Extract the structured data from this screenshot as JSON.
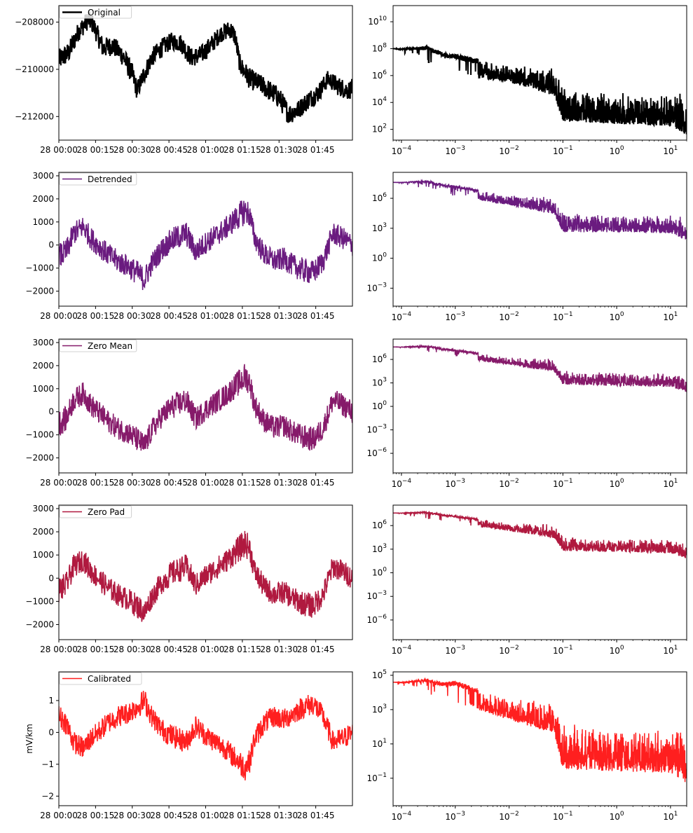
{
  "chart_data": [
    {
      "type": "line",
      "panel": "time",
      "color": "#000000",
      "legend": "Original",
      "ylabel": "",
      "ylim": [
        -213000,
        -207300
      ],
      "yticks": [
        -212000,
        -210000,
        -208000
      ],
      "ytick_labels": [
        "−212000",
        "−210000",
        "−208000"
      ],
      "xlim_minutes": [
        0,
        120
      ],
      "xtick_labels": [
        "28 00:00",
        "28 00:15",
        "28 00:30",
        "28 00:45",
        "28 01:00",
        "28 01:15",
        "28 01:30",
        "28 01:45"
      ],
      "envelope": {
        "t": [
          0,
          4,
          8,
          12,
          14,
          18,
          22,
          26,
          30,
          32,
          34,
          38,
          42,
          46,
          50,
          54,
          58,
          62,
          66,
          70,
          72,
          74,
          78,
          82,
          86,
          90,
          94,
          98,
          102,
          106,
          110,
          114,
          118,
          120
        ],
        "center": [
          -209600,
          -209300,
          -208400,
          -207900,
          -208100,
          -209100,
          -209000,
          -209400,
          -210200,
          -210900,
          -210400,
          -209500,
          -209100,
          -208800,
          -208900,
          -209500,
          -209400,
          -209000,
          -208500,
          -208300,
          -208600,
          -209800,
          -210400,
          -210600,
          -210900,
          -211200,
          -211900,
          -211700,
          -211300,
          -211000,
          -210400,
          -210700,
          -210900,
          -210800
        ],
        "amp": [
          500,
          500,
          450,
          450,
          450,
          500,
          450,
          500,
          500,
          450,
          450,
          450,
          450,
          400,
          450,
          450,
          450,
          450,
          400,
          450,
          450,
          450,
          500,
          450,
          500,
          500,
          500,
          450,
          450,
          450,
          400,
          450,
          450,
          450
        ]
      }
    },
    {
      "type": "line",
      "panel": "spectrum",
      "scale": "log",
      "color": "#000000",
      "xlim": [
        7e-05,
        20
      ],
      "ylim_exp": [
        1.2,
        11.2
      ],
      "yticks_exp": [
        2,
        4,
        6,
        8,
        10
      ],
      "xticks_exp": [
        -4,
        -3,
        -2,
        -1,
        0,
        1
      ],
      "upper": {
        "f": [
          7e-05,
          0.0001,
          0.0003,
          0.0006,
          0.001,
          0.01,
          0.05,
          0.07,
          0.1,
          0.5,
          1,
          10,
          15,
          20
        ],
        "v": [
          8.0,
          8.0,
          8.2,
          7.7,
          7.6,
          6.8,
          6.6,
          6.5,
          5.1,
          4.8,
          4.8,
          4.7,
          4.8,
          3.5
        ]
      },
      "lower": {
        "f": [
          7e-05,
          0.001,
          0.01,
          0.07,
          0.1,
          1,
          10,
          20
        ],
        "v": [
          8.0,
          6.0,
          5.5,
          4.5,
          2.6,
          2.4,
          2.2,
          1.6
        ]
      }
    },
    {
      "type": "line",
      "panel": "time",
      "color": "#6a1b7f",
      "legend": "Detrended",
      "ylabel": "",
      "ylim": [
        -2650,
        3150
      ],
      "yticks": [
        -2000,
        -1000,
        0,
        1000,
        2000,
        3000
      ],
      "ytick_labels": [
        "−2000",
        "−1000",
        "0",
        "1000",
        "2000",
        "3000"
      ],
      "xlim_minutes": [
        0,
        120
      ],
      "xtick_labels": [
        "28 00:00",
        "28 00:15",
        "28 00:30",
        "28 00:45",
        "28 01:00",
        "28 01:15",
        "28 01:30",
        "28 01:45"
      ],
      "envelope": {
        "t": [
          0,
          3,
          6,
          10,
          13,
          16,
          20,
          24,
          28,
          32,
          35,
          38,
          42,
          46,
          52,
          56,
          60,
          64,
          68,
          72,
          76,
          78,
          80,
          84,
          88,
          92,
          96,
          100,
          104,
          108,
          112,
          116,
          120
        ],
        "center": [
          -500,
          -300,
          500,
          800,
          300,
          0,
          -400,
          -700,
          -900,
          -1200,
          -1500,
          -800,
          -200,
          200,
          500,
          -300,
          100,
          400,
          700,
          1100,
          1500,
          1300,
          300,
          -400,
          -700,
          -600,
          -900,
          -1100,
          -1200,
          -700,
          500,
          300,
          0
        ],
        "amp": [
          650,
          600,
          550,
          550,
          550,
          550,
          550,
          550,
          550,
          600,
          600,
          550,
          550,
          600,
          600,
          550,
          550,
          550,
          550,
          600,
          700,
          600,
          550,
          550,
          550,
          550,
          550,
          600,
          600,
          550,
          550,
          550,
          550
        ]
      }
    },
    {
      "type": "line",
      "panel": "spectrum",
      "scale": "log",
      "color": "#6a1b7f",
      "xlim": [
        7e-05,
        20
      ],
      "ylim_exp": [
        -4.8,
        8.6
      ],
      "yticks_exp": [
        -3,
        0,
        3,
        6
      ],
      "xticks_exp": [
        -4,
        -3,
        -2,
        -1,
        0,
        1
      ],
      "upper": {
        "f": [
          7e-05,
          0.0001,
          0.0003,
          0.0006,
          0.001,
          0.01,
          0.05,
          0.07,
          0.1,
          0.5,
          1,
          10,
          15,
          20
        ],
        "v": [
          7.6,
          7.6,
          7.8,
          7.4,
          7.3,
          6.3,
          6.2,
          6.0,
          4.6,
          4.4,
          4.3,
          4.3,
          4.3,
          3.1
        ]
      },
      "lower": {
        "f": [
          7e-05,
          0.001,
          0.01,
          0.07,
          0.1,
          1,
          10,
          20
        ],
        "v": [
          7.6,
          6.2,
          5.3,
          4.4,
          2.6,
          2.6,
          2.5,
          1.8
        ]
      }
    },
    {
      "type": "line",
      "panel": "time",
      "color": "#861a6a",
      "legend": "Zero Mean",
      "ylabel": "",
      "ylim": [
        -2650,
        3150
      ],
      "yticks": [
        -2000,
        -1000,
        0,
        1000,
        2000,
        3000
      ],
      "ytick_labels": [
        "−2000",
        "−1000",
        "0",
        "1000",
        "2000",
        "3000"
      ],
      "xlim_minutes": [
        0,
        120
      ],
      "xtick_labels": [
        "28 00:00",
        "28 00:15",
        "28 00:30",
        "28 00:45",
        "28 01:00",
        "28 01:15",
        "28 01:30",
        "28 01:45"
      ],
      "envelope": {
        "t": [
          0,
          3,
          6,
          10,
          13,
          16,
          20,
          24,
          28,
          32,
          35,
          38,
          42,
          46,
          52,
          56,
          60,
          64,
          68,
          72,
          76,
          78,
          80,
          84,
          88,
          92,
          96,
          100,
          104,
          108,
          112,
          116,
          120
        ],
        "center": [
          -500,
          -300,
          500,
          800,
          300,
          0,
          -400,
          -700,
          -900,
          -1200,
          -1500,
          -800,
          -200,
          200,
          500,
          -300,
          100,
          400,
          700,
          1100,
          1500,
          1300,
          300,
          -400,
          -700,
          -600,
          -900,
          -1100,
          -1200,
          -700,
          500,
          300,
          0
        ],
        "amp": [
          650,
          600,
          550,
          550,
          550,
          550,
          550,
          550,
          550,
          600,
          600,
          550,
          550,
          600,
          600,
          550,
          550,
          550,
          550,
          600,
          700,
          600,
          550,
          550,
          550,
          550,
          550,
          600,
          600,
          550,
          550,
          550,
          550
        ]
      }
    },
    {
      "type": "line",
      "panel": "spectrum",
      "scale": "log",
      "color": "#861a6a",
      "xlim": [
        7e-05,
        20
      ],
      "ylim_exp": [
        -8.5,
        8.6
      ],
      "yticks_exp": [
        -6,
        -3,
        0,
        3,
        6
      ],
      "xticks_exp": [
        -4,
        -3,
        -2,
        -1,
        0,
        1
      ],
      "upper": {
        "f": [
          7e-05,
          0.0001,
          0.0003,
          0.0006,
          0.001,
          0.01,
          0.05,
          0.07,
          0.1,
          0.5,
          1,
          10,
          15,
          20
        ],
        "v": [
          7.6,
          7.6,
          7.8,
          7.4,
          7.3,
          6.3,
          6.2,
          6.0,
          4.6,
          4.4,
          4.3,
          4.3,
          4.3,
          3.1
        ]
      },
      "lower": {
        "f": [
          7e-05,
          0.001,
          0.01,
          0.07,
          0.1,
          1,
          10,
          20
        ],
        "v": [
          7.6,
          6.2,
          5.3,
          4.4,
          2.8,
          2.6,
          2.5,
          1.8
        ]
      }
    },
    {
      "type": "line",
      "panel": "time",
      "color": "#b0193f",
      "legend": "Zero Pad",
      "ylabel": "",
      "ylim": [
        -2650,
        3150
      ],
      "yticks": [
        -2000,
        -1000,
        0,
        1000,
        2000,
        3000
      ],
      "ytick_labels": [
        "−2000",
        "−1000",
        "0",
        "1000",
        "2000",
        "3000"
      ],
      "xlim_minutes": [
        0,
        120
      ],
      "xtick_labels": [
        "28 00:00",
        "28 00:15",
        "28 00:30",
        "28 00:45",
        "28 01:00",
        "28 01:15",
        "28 01:30",
        "28 01:45"
      ],
      "envelope": {
        "t": [
          0,
          3,
          6,
          10,
          13,
          16,
          20,
          24,
          28,
          32,
          35,
          38,
          42,
          46,
          52,
          56,
          60,
          64,
          68,
          72,
          76,
          78,
          80,
          84,
          88,
          92,
          96,
          100,
          104,
          108,
          112,
          116,
          120
        ],
        "center": [
          -500,
          -300,
          500,
          800,
          300,
          0,
          -400,
          -700,
          -900,
          -1200,
          -1500,
          -800,
          -200,
          200,
          500,
          -300,
          100,
          400,
          700,
          1100,
          1500,
          1300,
          300,
          -400,
          -700,
          -600,
          -900,
          -1100,
          -1200,
          -700,
          500,
          300,
          0
        ],
        "amp": [
          650,
          600,
          550,
          550,
          550,
          550,
          550,
          550,
          550,
          600,
          600,
          550,
          550,
          600,
          600,
          550,
          550,
          550,
          550,
          600,
          700,
          600,
          550,
          550,
          550,
          550,
          550,
          600,
          600,
          550,
          550,
          550,
          550
        ]
      }
    },
    {
      "type": "line",
      "panel": "spectrum",
      "scale": "log",
      "color": "#b0193f",
      "xlim": [
        7e-05,
        20
      ],
      "ylim_exp": [
        -8.5,
        8.6
      ],
      "yticks_exp": [
        -6,
        -3,
        0,
        3,
        6
      ],
      "xticks_exp": [
        -4,
        -3,
        -2,
        -1,
        0,
        1
      ],
      "upper": {
        "f": [
          7e-05,
          0.0001,
          0.0003,
          0.0006,
          0.001,
          0.01,
          0.05,
          0.07,
          0.1,
          0.5,
          1,
          10,
          15,
          20
        ],
        "v": [
          7.6,
          7.6,
          7.8,
          7.4,
          7.3,
          6.3,
          6.2,
          6.0,
          4.6,
          4.4,
          4.3,
          4.3,
          4.3,
          3.1
        ]
      },
      "lower": {
        "f": [
          7e-05,
          0.001,
          0.01,
          0.07,
          0.1,
          1,
          10,
          20
        ],
        "v": [
          7.6,
          6.2,
          5.3,
          4.4,
          2.8,
          2.6,
          2.5,
          1.8
        ]
      }
    },
    {
      "type": "line",
      "panel": "time",
      "color": "#ff1f1f",
      "legend": "Calibrated",
      "ylabel": "mV/km",
      "ylim": [
        -2.3,
        1.9
      ],
      "yticks": [
        -2,
        -1,
        0,
        1
      ],
      "ytick_labels": [
        "−2",
        "−1",
        "0",
        "1"
      ],
      "xlim_minutes": [
        0,
        120
      ],
      "xtick_labels": [
        "28 00:00",
        "28 00:15",
        "28 00:30",
        "28 00:45",
        "28 01:00",
        "28 01:15",
        "28 01:30",
        "28 01:45"
      ],
      "envelope": {
        "t": [
          0,
          3,
          6,
          10,
          13,
          16,
          20,
          24,
          28,
          32,
          35,
          38,
          42,
          46,
          52,
          56,
          60,
          64,
          68,
          72,
          76,
          78,
          80,
          84,
          88,
          92,
          96,
          100,
          104,
          108,
          112,
          116,
          120
        ],
        "center": [
          0.5,
          0.3,
          -0.3,
          -0.5,
          -0.2,
          0.0,
          0.3,
          0.5,
          0.6,
          0.8,
          1.0,
          0.5,
          0.1,
          -0.1,
          -0.3,
          0.2,
          -0.1,
          -0.3,
          -0.5,
          -0.8,
          -1.1,
          -0.9,
          -0.2,
          0.3,
          0.5,
          0.4,
          0.6,
          0.8,
          0.9,
          0.5,
          -0.3,
          -0.2,
          0.0
        ],
        "amp": [
          0.42,
          0.4,
          0.38,
          0.38,
          0.38,
          0.38,
          0.38,
          0.38,
          0.38,
          0.4,
          0.42,
          0.38,
          0.38,
          0.4,
          0.4,
          0.38,
          0.38,
          0.38,
          0.38,
          0.4,
          0.48,
          0.4,
          0.38,
          0.38,
          0.38,
          0.38,
          0.38,
          0.4,
          0.4,
          0.38,
          0.38,
          0.38,
          0.38
        ]
      }
    },
    {
      "type": "line",
      "panel": "spectrum",
      "scale": "log",
      "color": "#ff1f1f",
      "xlim": [
        7e-05,
        20
      ],
      "ylim_exp": [
        -2.6,
        5.2
      ],
      "yticks_exp": [
        -1,
        1,
        3,
        5
      ],
      "xticks_exp": [
        -4,
        -3,
        -2,
        -1,
        0,
        1
      ],
      "upper": {
        "f": [
          7e-05,
          0.0001,
          0.0003,
          0.0006,
          0.001,
          0.01,
          0.05,
          0.07,
          0.1,
          0.5,
          1,
          10,
          15,
          20
        ],
        "v": [
          4.6,
          4.6,
          4.8,
          4.6,
          4.7,
          3.6,
          3.5,
          3.4,
          2.2,
          2.0,
          1.9,
          1.9,
          2.0,
          0.9
        ]
      },
      "lower": {
        "f": [
          7e-05,
          0.001,
          0.01,
          0.07,
          0.1,
          1,
          10,
          20
        ],
        "v": [
          4.6,
          3.4,
          2.4,
          1.6,
          -0.5,
          -0.6,
          -0.7,
          -1.3
        ]
      }
    }
  ]
}
